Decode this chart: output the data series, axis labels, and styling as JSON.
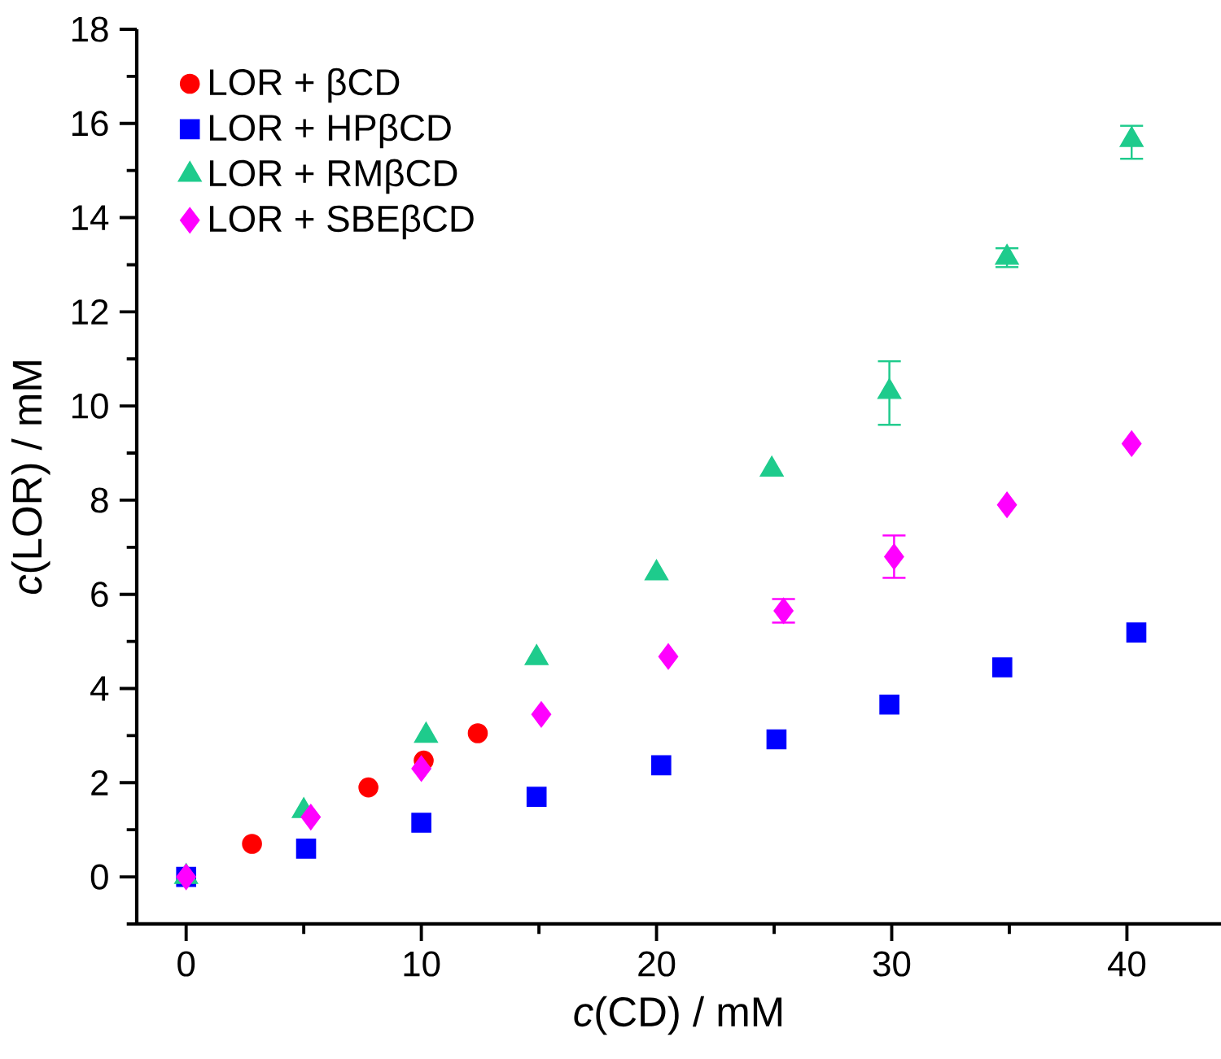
{
  "chart_data": {
    "type": "scatter",
    "xlabel": "*c*(CD) / mM",
    "ylabel": "*c*(LOR) / mM",
    "xlim": [
      -2.1,
      44
    ],
    "ylim": [
      -1,
      18
    ],
    "xticks": [
      0,
      {
        "value": 5,
        "label": null
      },
      10,
      {
        "value": 15,
        "label": null
      },
      20,
      {
        "value": 25,
        "label": null
      },
      30,
      {
        "value": 35,
        "label": null
      },
      40
    ],
    "yticks": [
      {
        "value": -1,
        "label": null
      },
      0,
      {
        "value": 1,
        "label": null
      },
      2,
      {
        "value": 3,
        "label": null
      },
      4,
      {
        "value": 5,
        "label": null
      },
      6,
      {
        "value": 7,
        "label": null
      },
      8,
      {
        "value": 9,
        "label": null
      },
      10,
      {
        "value": 11,
        "label": null
      },
      12,
      {
        "value": 13,
        "label": null
      },
      14,
      {
        "value": 15,
        "label": null
      },
      16,
      {
        "value": 17,
        "label": null
      },
      18
    ],
    "grid": false,
    "legend": "top left",
    "series": [
      {
        "name": "LOR + βCD",
        "color": "#ff0000",
        "marker": "circle",
        "x": [
          2.8,
          7.75,
          10.1,
          12.4
        ],
        "values": [
          0.7,
          1.9,
          2.47,
          3.05
        ]
      },
      {
        "name": "LOR + HPβCD",
        "color": "#0000ff",
        "marker": "square",
        "x": [
          0,
          5.1,
          10.0,
          14.9,
          20.2,
          25.1,
          29.9,
          34.7,
          40.4
        ],
        "values": [
          0,
          0.6,
          1.15,
          1.7,
          2.37,
          2.92,
          3.66,
          4.45,
          5.19
        ]
      },
      {
        "name": "LOR + RMβCD",
        "color": "#1ecb8c",
        "marker": "triangle",
        "x": [
          0,
          5.0,
          10.2,
          14.9,
          20.0,
          24.9,
          29.9,
          34.9,
          40.2
        ],
        "values": [
          0,
          1.4,
          3.0,
          4.65,
          6.45,
          8.65,
          10.3,
          13.15,
          15.65
        ],
        "errors": [
          null,
          null,
          null,
          null,
          null,
          null,
          [
            9.6,
            10.95
          ],
          [
            12.95,
            13.35
          ],
          [
            15.25,
            15.95
          ]
        ]
      },
      {
        "name": "LOR + SBEβCD",
        "color": "#ff00ff",
        "marker": "diamond",
        "x": [
          0,
          5.3,
          10.0,
          15.1,
          20.5,
          25.4,
          30.1,
          34.9,
          40.2
        ],
        "values": [
          0,
          1.27,
          2.3,
          3.45,
          4.68,
          5.65,
          6.8,
          7.9,
          9.2
        ],
        "errors": [
          null,
          null,
          null,
          null,
          null,
          [
            5.4,
            5.9
          ],
          [
            6.35,
            7.25
          ],
          null,
          null
        ]
      }
    ]
  }
}
